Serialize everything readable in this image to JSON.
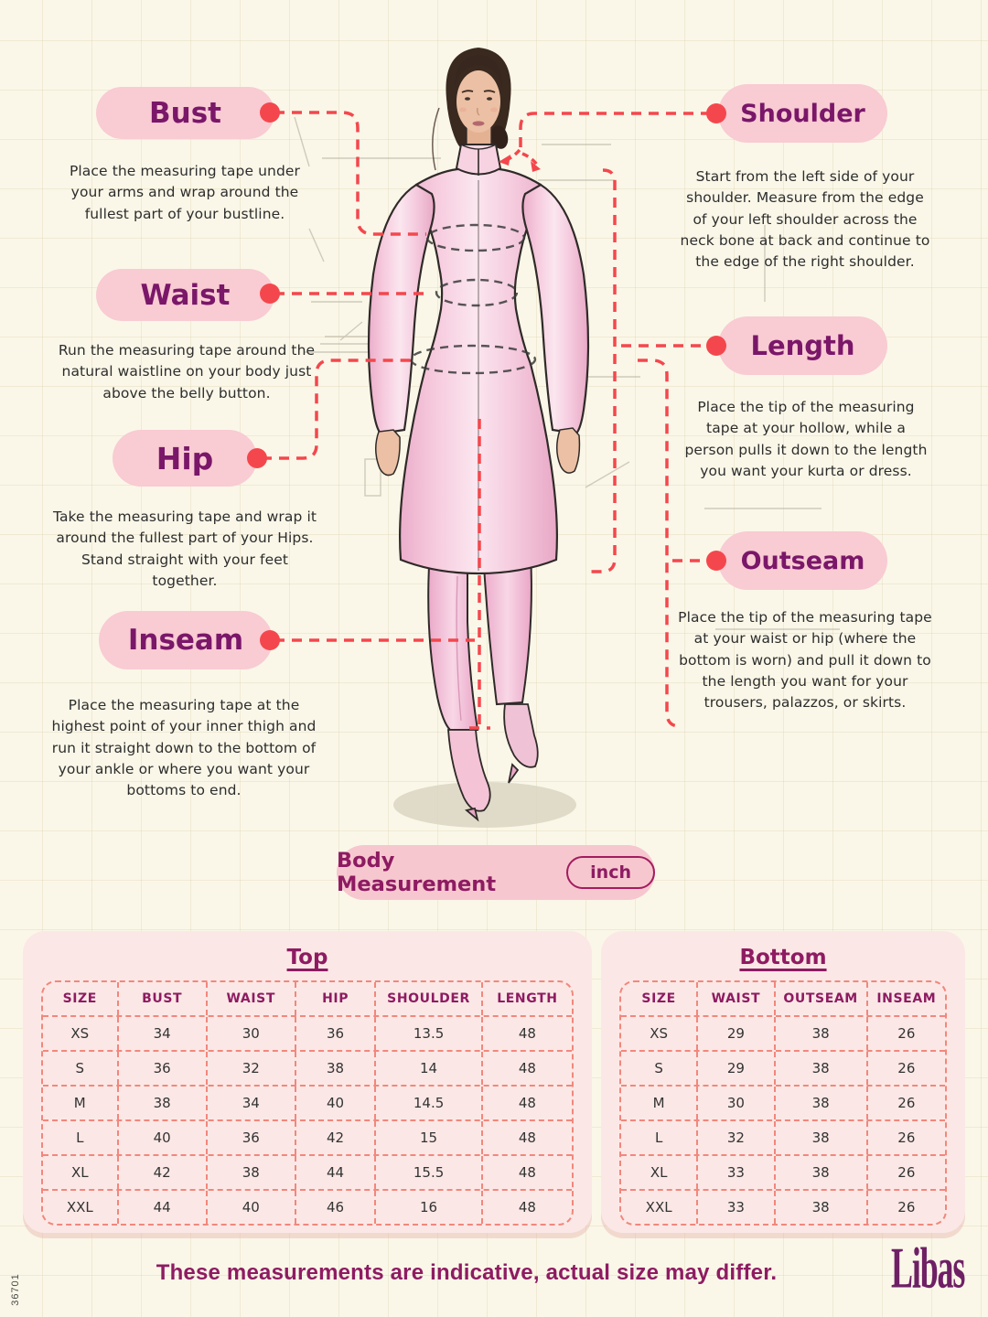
{
  "colors": {
    "background_cream": "#FAF7E8",
    "pill_pink": "#F9CBD3",
    "label_purple": "#7A1769",
    "heading_magenta": "#8E1B62",
    "accent_red": "#F4474D",
    "table_dash_salmon": "#F2877C",
    "table_card_pink": "#FBE8E6"
  },
  "sku": "36701",
  "labels": {
    "bust": {
      "title": "Bust",
      "desc": "Place the measuring tape under your arms and wrap around the fullest part of your bustline."
    },
    "waist": {
      "title": "Waist",
      "desc": "Run the measuring tape around the natural waistline on your body just above the belly button."
    },
    "hip": {
      "title": "Hip",
      "desc": "Take the measuring tape and wrap it around the fullest part of your Hips. Stand straight with your feet together."
    },
    "inseam": {
      "title": "Inseam",
      "desc": "Place the measuring tape at the highest point of your inner thigh and run it straight down to the bottom of your ankle or where you want your bottoms to end."
    },
    "shoulder": {
      "title": "Shoulder",
      "desc": "Start from the left side of your shoulder. Measure from the edge of your left shoulder across the neck bone at back and continue to the edge of the right shoulder."
    },
    "length": {
      "title": "Length",
      "desc": "Place the tip of the measuring tape at your hollow, while a person pulls it down to the length you want your kurta or dress."
    },
    "outseam": {
      "title": "Outseam",
      "desc": "Place the tip of the measuring tape at your waist or hip (where the bottom is worn) and pull it down to the length you want for your trousers, palazzos, or skirts."
    }
  },
  "unit_badge": {
    "label": "Body Measurement",
    "unit": "inch"
  },
  "tables": {
    "top": {
      "title": "Top",
      "headers": [
        "SIZE",
        "BUST",
        "WAIST",
        "HIP",
        "SHOULDER",
        "LENGTH"
      ],
      "rows": [
        [
          "XS",
          "34",
          "30",
          "36",
          "13.5",
          "48"
        ],
        [
          "S",
          "36",
          "32",
          "38",
          "14",
          "48"
        ],
        [
          "M",
          "38",
          "34",
          "40",
          "14.5",
          "48"
        ],
        [
          "L",
          "40",
          "36",
          "42",
          "15",
          "48"
        ],
        [
          "XL",
          "42",
          "38",
          "44",
          "15.5",
          "48"
        ],
        [
          "XXL",
          "44",
          "40",
          "46",
          "16",
          "48"
        ]
      ]
    },
    "bottom": {
      "title": "Bottom",
      "headers": [
        "SIZE",
        "WAIST",
        "OUTSEAM",
        "INSEAM"
      ],
      "rows": [
        [
          "XS",
          "29",
          "38",
          "26"
        ],
        [
          "S",
          "29",
          "38",
          "26"
        ],
        [
          "M",
          "30",
          "38",
          "26"
        ],
        [
          "L",
          "32",
          "38",
          "26"
        ],
        [
          "XL",
          "33",
          "38",
          "26"
        ],
        [
          "XXL",
          "33",
          "38",
          "26"
        ]
      ]
    }
  },
  "footer": {
    "note": "These measurements are indicative, actual size may differ.",
    "brand": "Libas"
  }
}
